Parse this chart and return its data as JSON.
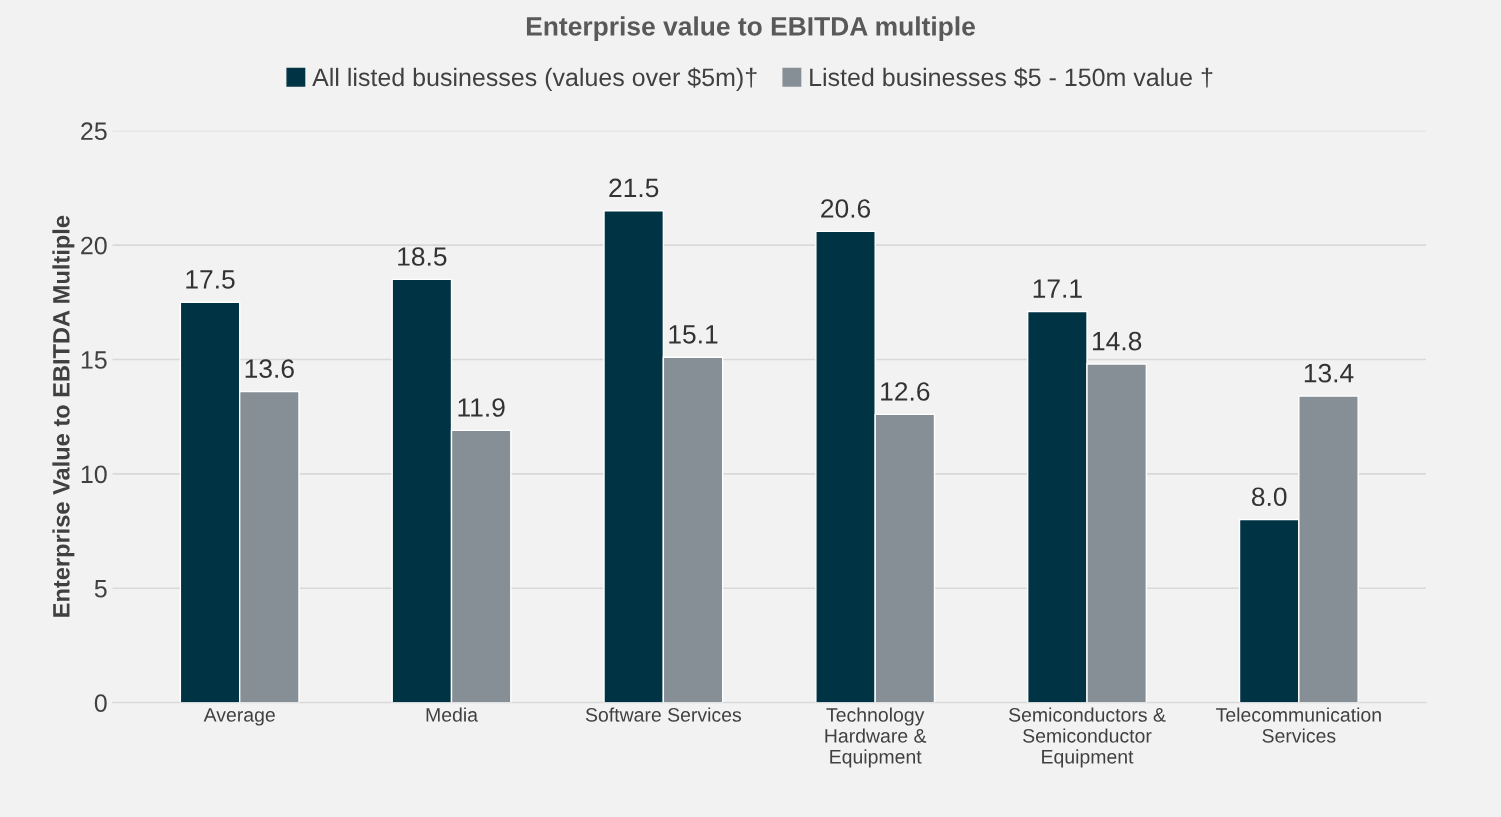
{
  "chart_data": {
    "type": "bar",
    "title": "Enterprise value to EBITDA multiple",
    "ylabel": "Enterprise Value to EBITDA Multiple",
    "categories": [
      "Average",
      "Media",
      "Software Services",
      "Technology\nHardware &\nEquipment",
      "Semiconductors &\nSemiconductor\nEquipment",
      "Telecommunication\nServices"
    ],
    "series": [
      {
        "name": "All listed businesses (values over $5m)†",
        "color": "#003444",
        "values": [
          17.5,
          18.5,
          21.5,
          20.6,
          17.1,
          8.0
        ],
        "value_labels": [
          "17.5",
          "18.5",
          "21.5",
          "20.6",
          "17.1",
          "8.0"
        ]
      },
      {
        "name": "Listed businesses $5 - 150m value †",
        "color": "#868e96",
        "values": [
          13.6,
          11.9,
          15.1,
          12.6,
          14.8,
          13.4
        ],
        "value_labels": [
          "13.6",
          "11.9",
          "15.1",
          "12.6",
          "14.8",
          "13.4"
        ]
      }
    ],
    "ylim": [
      0,
      25
    ],
    "yticks": [
      0,
      5,
      10,
      15,
      20,
      25
    ],
    "grid": "y",
    "legend": "top"
  }
}
